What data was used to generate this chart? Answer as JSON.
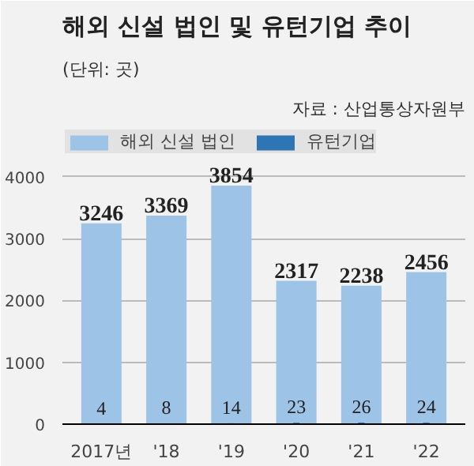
{
  "chart_data": {
    "type": "bar",
    "title": "해외 신설 법인 및 유턴기업 추이",
    "subtitle": "(단위: 곳)",
    "annotations": [
      "자료 : 산업통상자원부"
    ],
    "categories": [
      "2017년",
      "'18",
      "'19",
      "'20",
      "'21",
      "'22"
    ],
    "series": [
      {
        "name": "해외 신설 법인",
        "color": "#9dc3e6",
        "values": [
          3246,
          3369,
          3854,
          2317,
          2238,
          2456
        ]
      },
      {
        "name": "유턴기업",
        "color": "#2e75b6",
        "values": [
          4,
          8,
          14,
          23,
          26,
          24
        ]
      }
    ],
    "ylim": [
      0,
      4800
    ],
    "yticks": [
      0,
      1000,
      2000,
      3000,
      4000
    ],
    "grid": "y",
    "legend": "top",
    "data_labels": true
  }
}
